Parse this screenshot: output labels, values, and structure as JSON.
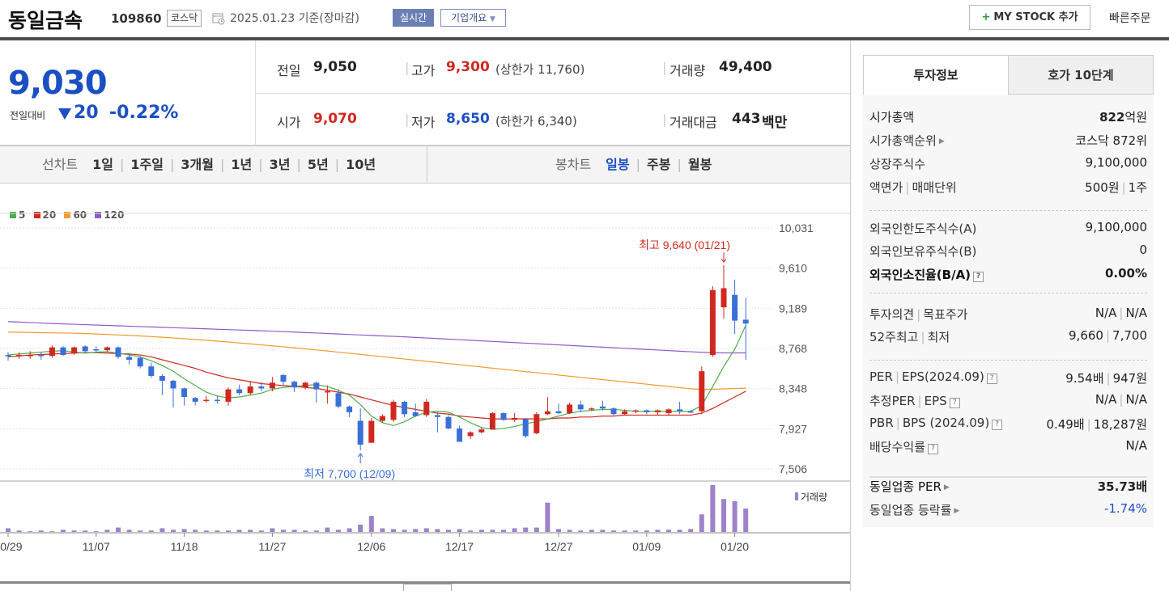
{
  "header": {
    "name": "동일금속",
    "code": "109860",
    "market": "코스닥",
    "date": "2025.01.23  기준(장마감)",
    "realtime_label": "실시간",
    "company_label": "기업개요",
    "mystock_label": "MY STOCK 추가",
    "quick_order_label": "빠른주문"
  },
  "price": {
    "current": "9,030",
    "diff_label": "전일대비",
    "diff_value": "20",
    "diff_rate": "-0.22%"
  },
  "quote": {
    "prev_label": "전일",
    "prev_value": "9,050",
    "high_label": "고가",
    "high_value": "9,300",
    "upper_limit": "(상한가 11,760)",
    "volume_label": "거래량",
    "volume_value": "49,400",
    "open_label": "시가",
    "open_value": "9,070",
    "low_label": "저가",
    "low_value": "8,650",
    "lower_limit": "(하한가 6,340)",
    "amount_label": "거래대금",
    "amount_value": "443",
    "amount_unit": "백만"
  },
  "period_bar": {
    "line_label": "선차트",
    "line_items": [
      "1일",
      "1주일",
      "3개월",
      "1년",
      "3년",
      "5년",
      "10년"
    ],
    "candle_label": "봉차트",
    "candle_items": [
      "일봉",
      "주봉",
      "월봉"
    ]
  },
  "chart_data": {
    "type": "candlestick",
    "legend": [
      "5",
      "20",
      "60",
      "120"
    ],
    "legend_colors": [
      "#4cae4c",
      "#d0281f",
      "#f09b2a",
      "#8e5cc9"
    ],
    "y_ticks": [
      "10,031",
      "9,610",
      "9,189",
      "8,768",
      "8,348",
      "7,927",
      "7,506"
    ],
    "y_tick_values": [
      10031,
      9610,
      9189,
      8768,
      8348,
      7927,
      7506
    ],
    "ylim": [
      7506,
      10031
    ],
    "x_ticks": [
      "10/29",
      "11/07",
      "11/18",
      "11/27",
      "12/06",
      "12/17",
      "12/27",
      "01/09",
      "01/20"
    ],
    "high_annotation": "최고 9,640 (01/21)",
    "low_annotation": "최저 7,700 (12/09)",
    "volume_label": "거래량",
    "up_color": "#d0281f",
    "down_color": "#3a6fd8",
    "candles": [
      {
        "o": 8700,
        "c": 8690,
        "h": 8730,
        "l": 8640
      },
      {
        "o": 8690,
        "c": 8700,
        "h": 8730,
        "l": 8660
      },
      {
        "o": 8700,
        "c": 8700,
        "h": 8740,
        "l": 8660
      },
      {
        "o": 8700,
        "c": 8690,
        "h": 8730,
        "l": 8650
      },
      {
        "o": 8690,
        "c": 8780,
        "h": 8800,
        "l": 8670
      },
      {
        "o": 8780,
        "c": 8700,
        "h": 8790,
        "l": 8690
      },
      {
        "o": 8720,
        "c": 8780,
        "h": 8790,
        "l": 8700
      },
      {
        "o": 8790,
        "c": 8740,
        "h": 8800,
        "l": 8720
      },
      {
        "o": 8760,
        "c": 8750,
        "h": 8790,
        "l": 8720
      },
      {
        "o": 8750,
        "c": 8780,
        "h": 8790,
        "l": 8730
      },
      {
        "o": 8780,
        "c": 8680,
        "h": 8790,
        "l": 8660
      },
      {
        "o": 8680,
        "c": 8650,
        "h": 8720,
        "l": 8600
      },
      {
        "o": 8670,
        "c": 8580,
        "h": 8690,
        "l": 8560
      },
      {
        "o": 8580,
        "c": 8480,
        "h": 8620,
        "l": 8460
      },
      {
        "o": 8480,
        "c": 8430,
        "h": 8500,
        "l": 8280
      },
      {
        "o": 8430,
        "c": 8350,
        "h": 8440,
        "l": 8150
      },
      {
        "o": 8350,
        "c": 8260,
        "h": 8360,
        "l": 8170
      },
      {
        "o": 8250,
        "c": 8210,
        "h": 8260,
        "l": 8170
      },
      {
        "o": 8220,
        "c": 8230,
        "h": 8270,
        "l": 8200
      },
      {
        "o": 8230,
        "c": 8220,
        "h": 8270,
        "l": 8190
      },
      {
        "o": 8210,
        "c": 8340,
        "h": 8360,
        "l": 8170
      },
      {
        "o": 8340,
        "c": 8300,
        "h": 8390,
        "l": 8280
      },
      {
        "o": 8300,
        "c": 8370,
        "h": 8430,
        "l": 8280
      },
      {
        "o": 8370,
        "c": 8350,
        "h": 8420,
        "l": 8320
      },
      {
        "o": 8350,
        "c": 8410,
        "h": 8470,
        "l": 8320
      },
      {
        "o": 8490,
        "c": 8420,
        "h": 8500,
        "l": 8380
      },
      {
        "o": 8420,
        "c": 8360,
        "h": 8430,
        "l": 8310
      },
      {
        "o": 8360,
        "c": 8410,
        "h": 8420,
        "l": 8340
      },
      {
        "o": 8410,
        "c": 8340,
        "h": 8420,
        "l": 8200
      },
      {
        "o": 8320,
        "c": 8320,
        "h": 8380,
        "l": 8190
      },
      {
        "o": 8300,
        "c": 8160,
        "h": 8340,
        "l": 8140
      },
      {
        "o": 8160,
        "c": 8100,
        "h": 8170,
        "l": 8050
      },
      {
        "o": 8010,
        "c": 7760,
        "h": 8140,
        "l": 7700
      },
      {
        "o": 7780,
        "c": 8010,
        "h": 8040,
        "l": 7780
      },
      {
        "o": 8010,
        "c": 8060,
        "h": 8080,
        "l": 7990
      },
      {
        "o": 8020,
        "c": 8210,
        "h": 8230,
        "l": 8000
      },
      {
        "o": 8210,
        "c": 8080,
        "h": 8220,
        "l": 8050
      },
      {
        "o": 8100,
        "c": 8060,
        "h": 8190,
        "l": 8050
      },
      {
        "o": 8070,
        "c": 8210,
        "h": 8240,
        "l": 8050
      },
      {
        "o": 8070,
        "c": 8050,
        "h": 8100,
        "l": 7890
      },
      {
        "o": 8050,
        "c": 7930,
        "h": 8070,
        "l": 7920
      },
      {
        "o": 7930,
        "c": 7790,
        "h": 7960,
        "l": 7790
      },
      {
        "o": 7850,
        "c": 7890,
        "h": 7900,
        "l": 7820
      },
      {
        "o": 7890,
        "c": 7920,
        "h": 7940,
        "l": 7880
      },
      {
        "o": 7920,
        "c": 8090,
        "h": 8100,
        "l": 7920
      },
      {
        "o": 8090,
        "c": 8020,
        "h": 8100,
        "l": 8010
      },
      {
        "o": 8020,
        "c": 8040,
        "h": 8090,
        "l": 8000
      },
      {
        "o": 8030,
        "c": 7850,
        "h": 8040,
        "l": 7830
      },
      {
        "o": 7880,
        "c": 8080,
        "h": 8100,
        "l": 7870
      },
      {
        "o": 8080,
        "c": 8110,
        "h": 8260,
        "l": 8070
      },
      {
        "o": 8110,
        "c": 8090,
        "h": 8190,
        "l": 8080
      },
      {
        "o": 8090,
        "c": 8180,
        "h": 8200,
        "l": 8080
      },
      {
        "o": 8180,
        "c": 8130,
        "h": 8220,
        "l": 8100
      },
      {
        "o": 8130,
        "c": 8140,
        "h": 8150,
        "l": 8110
      },
      {
        "o": 8160,
        "c": 8140,
        "h": 8220,
        "l": 8120
      },
      {
        "o": 8140,
        "c": 8080,
        "h": 8150,
        "l": 8070
      },
      {
        "o": 8080,
        "c": 8110,
        "h": 8130,
        "l": 8070
      },
      {
        "o": 8110,
        "c": 8120,
        "h": 8130,
        "l": 8090
      },
      {
        "o": 8120,
        "c": 8100,
        "h": 8130,
        "l": 8080
      },
      {
        "o": 8100,
        "c": 8120,
        "h": 8130,
        "l": 8070
      },
      {
        "o": 8090,
        "c": 8130,
        "h": 8140,
        "l": 8070
      },
      {
        "o": 8130,
        "c": 8110,
        "h": 8210,
        "l": 8080
      },
      {
        "o": 8110,
        "c": 8100,
        "h": 8120,
        "l": 8090
      },
      {
        "o": 8110,
        "c": 8530,
        "h": 8580,
        "l": 8080
      },
      {
        "o": 8700,
        "c": 9380,
        "h": 9420,
        "l": 8680
      },
      {
        "o": 9200,
        "c": 9400,
        "h": 9640,
        "l": 9080
      },
      {
        "o": 9330,
        "c": 9060,
        "h": 9490,
        "l": 8920
      },
      {
        "o": 9070,
        "c": 9030,
        "h": 9300,
        "l": 8650
      }
    ],
    "ma5": [
      8700,
      8710,
      8720,
      8730,
      8740,
      8745,
      8730,
      8720,
      8730,
      8735,
      8720,
      8700,
      8680,
      8640,
      8590,
      8530,
      8450,
      8380,
      8310,
      8270,
      8250,
      8260,
      8280,
      8300,
      8340,
      8360,
      8370,
      8380,
      8390,
      8370,
      8330,
      8280,
      8180,
      8060,
      7990,
      7960,
      8000,
      8060,
      8100,
      8110,
      8100,
      8050,
      7990,
      7940,
      7920,
      7930,
      7950,
      7980,
      8000,
      8030,
      8060,
      8090,
      8110,
      8120,
      8130,
      8130,
      8120,
      8110,
      8110,
      8110,
      8110,
      8110,
      8110,
      8170,
      8370,
      8580,
      8760,
      9010
    ],
    "ma20": [
      8680,
      8690,
      8700,
      8705,
      8710,
      8715,
      8720,
      8725,
      8725,
      8720,
      8715,
      8710,
      8700,
      8680,
      8650,
      8620,
      8590,
      8560,
      8520,
      8490,
      8460,
      8440,
      8420,
      8400,
      8390,
      8380,
      8370,
      8360,
      8350,
      8330,
      8310,
      8290,
      8260,
      8230,
      8200,
      8170,
      8150,
      8130,
      8110,
      8090,
      8080,
      8060,
      8050,
      8040,
      8030,
      8030,
      8030,
      8030,
      8030,
      8030,
      8040,
      8040,
      8050,
      8050,
      8060,
      8060,
      8070,
      8070,
      8070,
      8070,
      8070,
      8070,
      8070,
      8090,
      8140,
      8200,
      8260,
      8320
    ],
    "ma60": [
      8940,
      8938,
      8936,
      8934,
      8932,
      8930,
      8928,
      8925,
      8920,
      8915,
      8910,
      8905,
      8900,
      8893,
      8886,
      8878,
      8870,
      8862,
      8854,
      8845,
      8836,
      8826,
      8816,
      8806,
      8796,
      8786,
      8775,
      8764,
      8753,
      8742,
      8730,
      8718,
      8706,
      8694,
      8682,
      8670,
      8658,
      8646,
      8634,
      8622,
      8610,
      8598,
      8586,
      8574,
      8562,
      8550,
      8538,
      8526,
      8514,
      8502,
      8490,
      8478,
      8466,
      8454,
      8442,
      8430,
      8418,
      8406,
      8394,
      8382,
      8370,
      8358,
      8346,
      8340,
      8340,
      8345,
      8348,
      8352
    ],
    "ma120": [
      9050,
      9045,
      9040,
      9035,
      9030,
      9026,
      9022,
      9018,
      9014,
      9010,
      9006,
      9002,
      8998,
      8994,
      8990,
      8986,
      8982,
      8978,
      8974,
      8970,
      8966,
      8962,
      8958,
      8954,
      8950,
      8945,
      8940,
      8935,
      8930,
      8925,
      8920,
      8915,
      8910,
      8905,
      8900,
      8895,
      8890,
      8884,
      8878,
      8872,
      8866,
      8860,
      8854,
      8848,
      8842,
      8836,
      8830,
      8824,
      8818,
      8812,
      8806,
      8800,
      8794,
      8788,
      8782,
      8776,
      8770,
      8764,
      8758,
      8752,
      8746,
      8740,
      8734,
      8728,
      8724,
      8722,
      8722,
      8722
    ],
    "volume": [
      5,
      2,
      1,
      2,
      1,
      3,
      2,
      2,
      1,
      3,
      6,
      3,
      2,
      2,
      5,
      3,
      4,
      3,
      2,
      2,
      2,
      3,
      3,
      2,
      5,
      3,
      3,
      2,
      2,
      6,
      3,
      5,
      10,
      22,
      5,
      4,
      3,
      4,
      5,
      4,
      3,
      4,
      2,
      3,
      3,
      3,
      5,
      6,
      6,
      40,
      4,
      3,
      2,
      3,
      3,
      2,
      2,
      2,
      2,
      3,
      3,
      3,
      4,
      24,
      64,
      45,
      42,
      32
    ]
  },
  "invest_info": {
    "tab_info": "투자정보",
    "tab_hoga": "호가 10단계",
    "market_cap_label": "시가총액",
    "market_cap_value": "822",
    "market_cap_unit": "억원",
    "rank_label": "시가총액순위",
    "rank_value": "코스닥 872위",
    "shares_label": "상장주식수",
    "shares_value": "9,100,000",
    "par_label": "액면가",
    "unit_label": "매매단위",
    "par_value": "500원",
    "unit_value": "1주",
    "foreign_limit_label": "외국인한도주식수(A)",
    "foreign_limit_value": "9,100,000",
    "foreign_hold_label": "외국인보유주식수(B)",
    "foreign_hold_value": "0",
    "foreign_rate_label": "외국인소진율(B/A)",
    "foreign_rate_value": "0.00%",
    "opinion_label": "투자의견",
    "target_label": "목표주가",
    "opinion_value": "N/A",
    "target_value": "N/A",
    "w52_label": "52주최고",
    "low_label": "최저",
    "w52_high": "9,660",
    "w52_low": "7,700",
    "per_label": "PER",
    "eps_label": "EPS(2024.09)",
    "per_value": "9.54배",
    "eps_value": "947원",
    "eper_label": "추정PER",
    "eeps_label": "EPS",
    "eper_value": "N/A",
    "eeps_value": "N/A",
    "pbr_label": "PBR",
    "bps_label": "BPS (2024.09)",
    "pbr_value": "0.49배",
    "bps_value": "18,287원",
    "div_label": "배당수익률",
    "div_value": "N/A",
    "ind_per_label": "동일업종 PER",
    "ind_per_value": "35.73배",
    "ind_rate_label": "동일업종 등락률",
    "ind_rate_value": "-1.74%"
  }
}
